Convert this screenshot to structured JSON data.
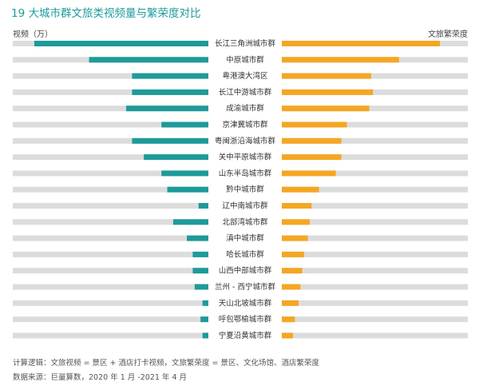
{
  "chart_data": {
    "type": "bar",
    "title": "19 大城市群文旅类视频量与繁荣度对比",
    "left_axis_label": "视频（万）",
    "right_axis_label": "文旅繁荣度",
    "categories": [
      "长江三角洲城市群",
      "中原城市群",
      "粤港澳大湾区",
      "长江中游城市群",
      "成渝城市群",
      "京津冀城市群",
      "粤闽浙沿海城市群",
      "关中平原城市群",
      "山东半岛城市群",
      "黔中城市群",
      "辽中南城市群",
      "北部湾城市群",
      "滇中城市群",
      "哈长城市群",
      "山西中部城市群",
      "兰州 - 西宁城市群",
      "天山北坡城市群",
      "呼包鄂榆城市群",
      "宁夏沿黄城市群"
    ],
    "series": [
      {
        "side": "left",
        "color": "#1e9a9a",
        "values": [
          0.89,
          0.61,
          0.39,
          0.39,
          0.42,
          0.24,
          0.39,
          0.33,
          0.24,
          0.21,
          0.05,
          0.18,
          0.11,
          0.08,
          0.08,
          0.07,
          0.03,
          0.04,
          0.03
        ]
      },
      {
        "side": "right",
        "color": "#f5a623",
        "values": [
          0.85,
          0.63,
          0.48,
          0.49,
          0.47,
          0.35,
          0.32,
          0.32,
          0.29,
          0.2,
          0.16,
          0.15,
          0.14,
          0.12,
          0.11,
          0.1,
          0.09,
          0.07,
          0.06
        ]
      }
    ],
    "track_color": "#dcdcdc"
  },
  "notes": {
    "logic": "计算逻辑：文旅视频 = 景区 + 酒店打卡视频，文旅繁荣度 = 景区、文化场馆、酒店繁荣度",
    "source": "数据来源：巨量算数，2020 年 1 月 -2021 年 4 月"
  }
}
